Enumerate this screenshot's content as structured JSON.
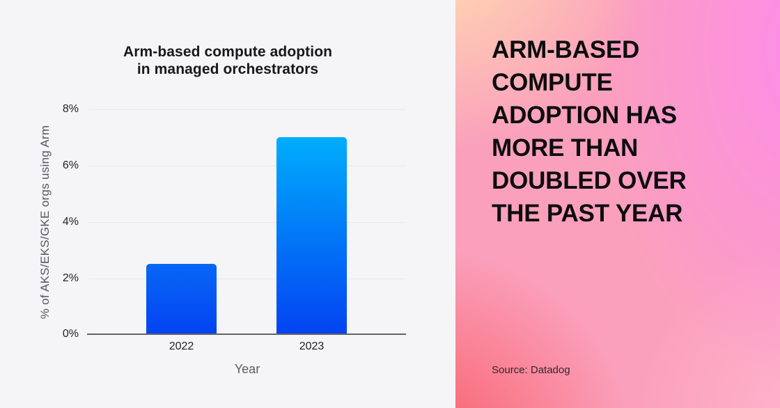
{
  "chart": {
    "title_line1": "Arm-based compute adoption",
    "title_line2": "in managed orchestrators",
    "y_axis_label": "% of AKS/EKS/GKE orgs using Arm",
    "x_axis_label": "Year"
  },
  "chart_data": {
    "type": "bar",
    "title": "Arm-based compute adoption in managed orchestrators",
    "categories": [
      "2022",
      "2023"
    ],
    "values": [
      2.5,
      7.0
    ],
    "xlabel": "Year",
    "ylabel": "% of AKS/EKS/GKE orgs using Arm",
    "ylim": [
      0,
      8
    ],
    "ytick_labels": [
      "8%",
      "6%",
      "4%",
      "2%",
      "0%"
    ],
    "grid": true,
    "legend": false
  },
  "hero": {
    "headline_lines": [
      "ARM-BASED",
      "COMPUTE",
      "ADOPTION HAS",
      "MORE THAN",
      "DOUBLED OVER",
      "THE PAST YEAR"
    ],
    "source": "Source: Datadog"
  },
  "colors": {
    "left_panel_bg": "#f5f4f6",
    "gridline": "#e9e8ec",
    "axis_line": "#646467",
    "tick_text": "#1e1f22",
    "axis_label_text": "#54575c",
    "title_text": "#17181a",
    "bar_gradient_bottom": "#0443f2",
    "bar_top_2022": "#0767f6",
    "bar_top_2023": "#00adfc",
    "hero_gradient_peach": "#ffdcb0",
    "hero_gradient_magenta": "#fc8cea",
    "hero_gradient_coral": "#f85f68",
    "hero_gradient_light_pink": "#ffb4cd",
    "hero_base_pink": "#fba0bc",
    "headline_text": "#0d0d0f"
  }
}
